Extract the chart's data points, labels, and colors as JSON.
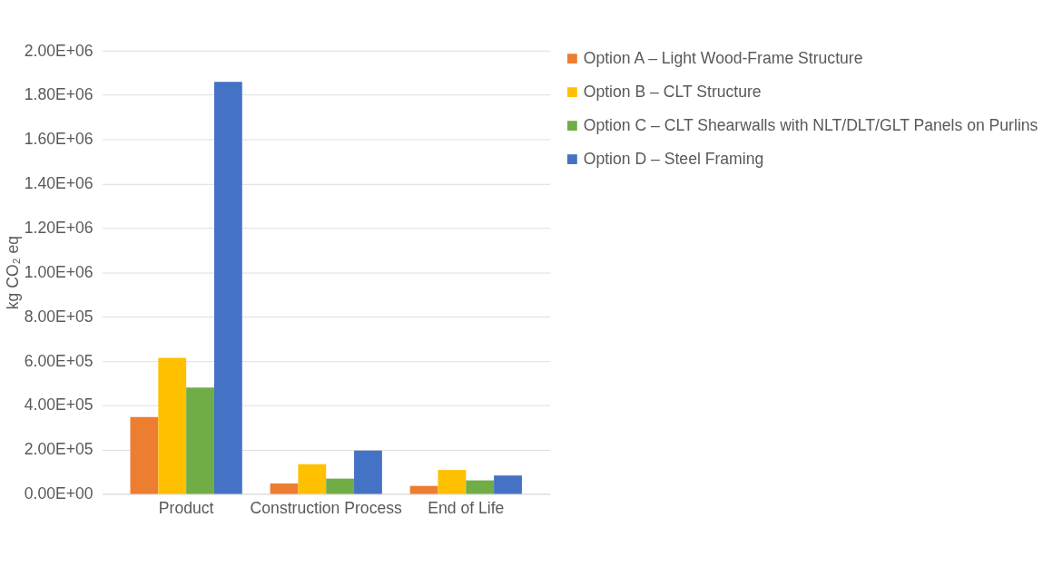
{
  "chart_data": {
    "type": "bar",
    "ylabel": "kg CO₂ eq",
    "categories": [
      "Product",
      "Construction Process",
      "End of Life"
    ],
    "series": [
      {
        "name": "Option A – Light Wood-Frame Structure",
        "color": "#ed7d31",
        "values": [
          347000,
          47000,
          36000
        ]
      },
      {
        "name": "Option B – CLT Structure",
        "color": "#ffc000",
        "values": [
          614000,
          134000,
          108000
        ]
      },
      {
        "name": "Option C – CLT Shearwalls with NLT/DLT/GLT Panels on Purlins",
        "color": "#70ad47",
        "values": [
          480000,
          69000,
          61000
        ]
      },
      {
        "name": "Option D – Steel Framing",
        "color": "#4472c4",
        "values": [
          1859000,
          195000,
          83000
        ]
      }
    ],
    "ylim": [
      0,
      2000000
    ],
    "yticks": [
      {
        "value": 0,
        "label": "0.00E+00"
      },
      {
        "value": 200000,
        "label": "2.00E+05"
      },
      {
        "value": 400000,
        "label": "4.00E+05"
      },
      {
        "value": 600000,
        "label": "6.00E+05"
      },
      {
        "value": 800000,
        "label": "8.00E+05"
      },
      {
        "value": 1000000,
        "label": "1.00E+06"
      },
      {
        "value": 1200000,
        "label": "1.20E+06"
      },
      {
        "value": 1400000,
        "label": "1.40E+06"
      },
      {
        "value": 1600000,
        "label": "1.60E+06"
      },
      {
        "value": 1800000,
        "label": "1.80E+06"
      },
      {
        "value": 2000000,
        "label": "2.00E+06"
      }
    ],
    "grid": "y",
    "legend": "right"
  }
}
